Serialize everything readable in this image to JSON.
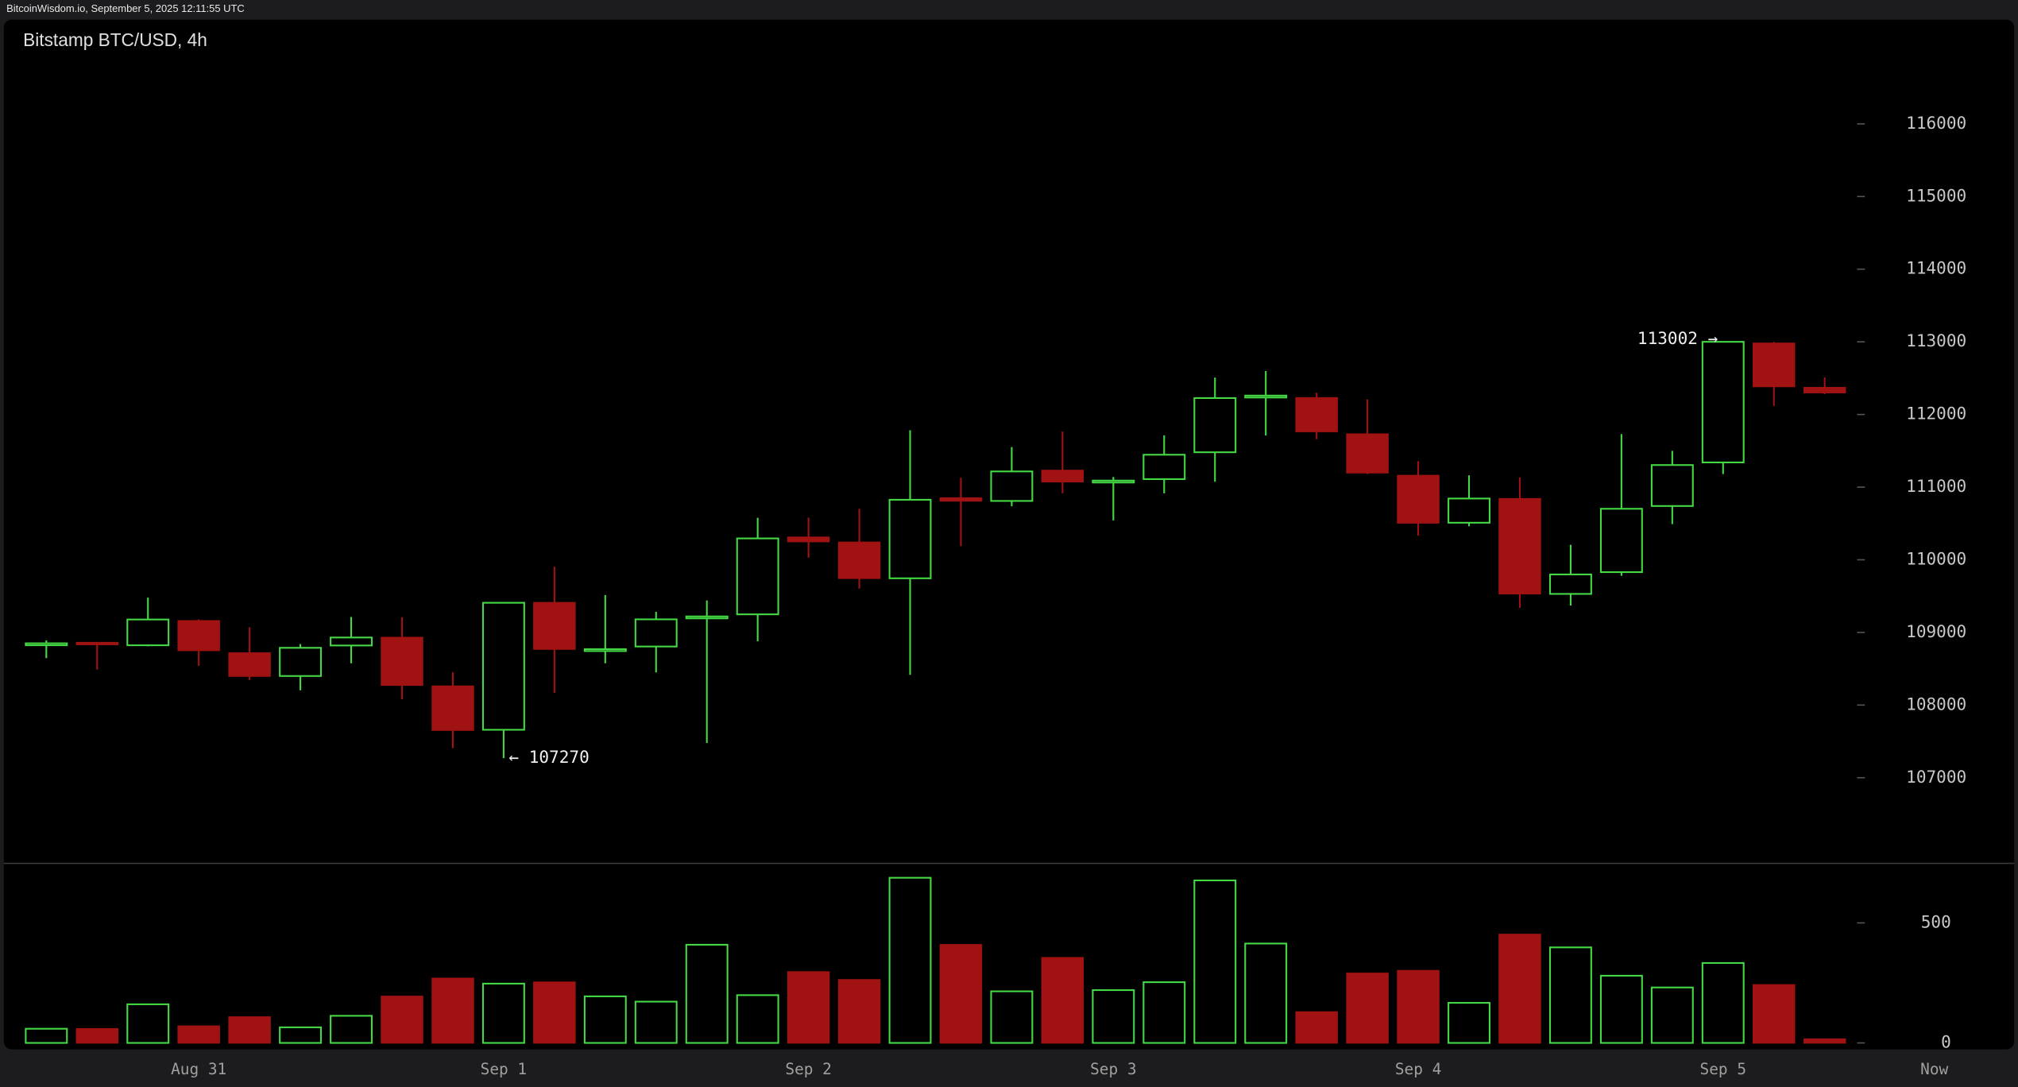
{
  "chart_data": {
    "type": "candlestick",
    "header": "BitcoinWisdom.io, September 5, 2025 12:11:55 UTC",
    "title": "Bitstamp BTC/USD, 4h",
    "categories": [
      null,
      null,
      null,
      "Aug 31",
      null,
      null,
      null,
      null,
      null,
      "Sep 1",
      null,
      null,
      null,
      null,
      null,
      "Sep 2",
      null,
      null,
      null,
      null,
      null,
      "Sep 3",
      null,
      null,
      null,
      null,
      null,
      "Sep 4",
      null,
      null,
      null,
      null,
      null,
      "Sep 5",
      null,
      null
    ],
    "now_label": "Now",
    "open": [
      108830,
      108860,
      108823,
      109160,
      108717,
      108400,
      108820,
      108930,
      108260,
      107660,
      109410,
      108750,
      108806,
      109200,
      109249,
      110310,
      110241,
      109745,
      110850,
      110810,
      111230,
      111070,
      111110,
      111480,
      112240,
      112230,
      111730,
      111160,
      110510,
      110840,
      109530,
      109830,
      110740,
      111340,
      112980,
      112370
    ],
    "high": [
      108890,
      108870,
      109479,
      109180,
      109072,
      108840,
      109213,
      109210,
      108451,
      109410,
      109904,
      109515,
      109284,
      109440,
      110578,
      110580,
      110702,
      111783,
      111127,
      111552,
      111765,
      111140,
      111712,
      112509,
      112598,
      112300,
      112208,
      111357,
      111162,
      111130,
      110206,
      111730,
      111499,
      113002,
      113000,
      112510
    ],
    "low": [
      108646,
      108490,
      108810,
      108540,
      108345,
      108203,
      108575,
      108080,
      107406,
      107270,
      108168,
      108575,
      108450,
      107477,
      108877,
      110029,
      109603,
      108416,
      110188,
      110737,
      110914,
      110542,
      110914,
      111074,
      111712,
      111660,
      111180,
      110330,
      110460,
      109337,
      109370,
      109780,
      110490,
      111180,
      112119,
      112280
    ],
    "close": [
      108850,
      108840,
      109178,
      108752,
      108398,
      108788,
      108930,
      108274,
      107654,
      109408,
      108770,
      108770,
      109180,
      109220,
      110294,
      110250,
      109745,
      110826,
      110810,
      111216,
      111074,
      111090,
      111446,
      112226,
      112260,
      111765,
      111198,
      110507,
      110843,
      109532,
      109798,
      110702,
      111304,
      113000,
      112385,
      112300
    ],
    "up_color": "#45d845",
    "down_color": "#a11212",
    "ylim": [
      105830,
      117435
    ],
    "yticks": [
      107000,
      108000,
      109000,
      110000,
      111000,
      112000,
      113000,
      114000,
      115000,
      116000
    ],
    "annotations": [
      {
        "value": 107270,
        "label": "← 107270"
      },
      {
        "value": 113002,
        "label": "113002 →"
      }
    ],
    "volume": {
      "values": [
        59,
        59,
        161,
        70,
        108,
        65,
        113,
        194,
        269,
        247,
        253,
        194,
        172,
        409,
        199,
        296,
        263,
        688,
        409,
        215,
        355,
        220,
        253,
        677,
        414,
        129,
        290,
        301,
        167,
        452,
        398,
        280,
        231,
        333,
        242,
        16
      ],
      "ylim": [
        0,
        740
      ],
      "yticks": [
        0,
        500
      ]
    }
  }
}
